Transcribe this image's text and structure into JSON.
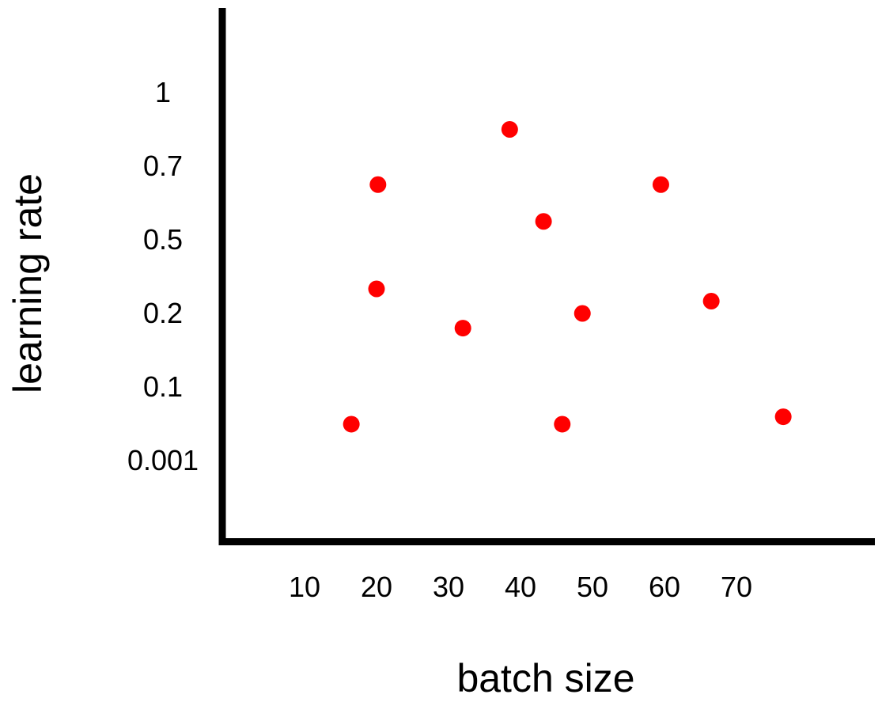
{
  "chart_data": {
    "type": "scatter",
    "title": "",
    "xlabel": "batch size",
    "ylabel": "learning rate",
    "x_ticks": [
      {
        "value": 10,
        "label": "10"
      },
      {
        "value": 20,
        "label": "20"
      },
      {
        "value": 30,
        "label": "30"
      },
      {
        "value": 40,
        "label": "40"
      },
      {
        "value": 50,
        "label": "50"
      },
      {
        "value": 60,
        "label": "60"
      },
      {
        "value": 70,
        "label": "70"
      }
    ],
    "y_ticks": [
      {
        "value": 1,
        "label": "1"
      },
      {
        "value": 0.7,
        "label": "0.7"
      },
      {
        "value": 0.5,
        "label": "0.5"
      },
      {
        "value": 0.2,
        "label": "0.2"
      },
      {
        "value": 0.1,
        "label": "0.1"
      },
      {
        "value": 0.001,
        "label": "0.001"
      }
    ],
    "y_scale": "categorical-ordinal",
    "grid": false,
    "legend": "none",
    "point_color": "#ff0000",
    "axis_color": "#000000",
    "series": [
      {
        "points": [
          {
            "x": 16.5,
            "y": 0.05
          },
          {
            "x": 20,
            "y": 0.3
          },
          {
            "x": 20.2,
            "y": 0.65
          },
          {
            "x": 32,
            "y": 0.18
          },
          {
            "x": 38.5,
            "y": 0.85
          },
          {
            "x": 43.2,
            "y": 0.55
          },
          {
            "x": 45.8,
            "y": 0.05
          },
          {
            "x": 48.6,
            "y": 0.2
          },
          {
            "x": 59.5,
            "y": 0.65
          },
          {
            "x": 66.5,
            "y": 0.25
          },
          {
            "x": 76.5,
            "y": 0.06
          }
        ]
      }
    ]
  }
}
